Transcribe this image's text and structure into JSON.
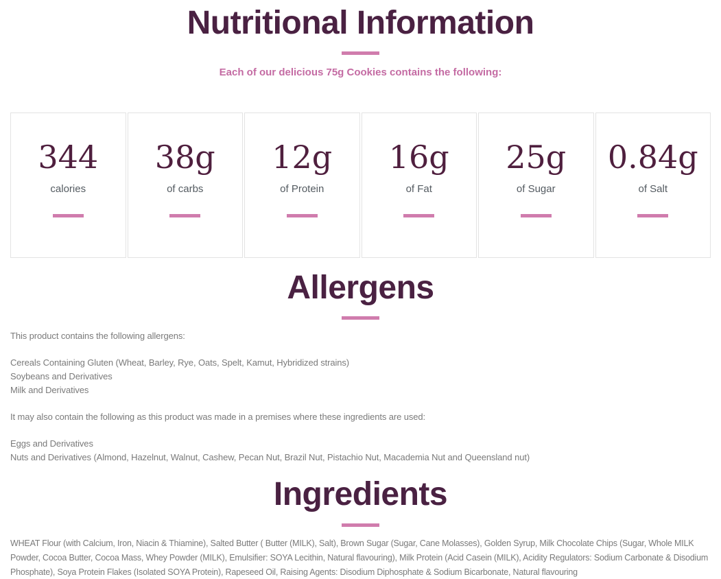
{
  "header": {
    "title": "Nutritional Information",
    "subtitle": "Each of our delicious 75g Cookies contains the following:"
  },
  "cards": [
    {
      "value": "344",
      "label": "calories"
    },
    {
      "value": "38g",
      "label": "of carbs"
    },
    {
      "value": "12g",
      "label": "of Protein"
    },
    {
      "value": "16g",
      "label": "of Fat"
    },
    {
      "value": "25g",
      "label": "of Sugar"
    },
    {
      "value": "0.84g",
      "label": "of Salt"
    }
  ],
  "allergens": {
    "heading": "Allergens",
    "intro": "This product contains the following allergens:",
    "contains": [
      "Cereals Containing Gluten (Wheat, Barley, Rye, Oats, Spelt, Kamut, Hybridized strains)",
      "Soybeans and Derivatives",
      "Milk and Derivatives"
    ],
    "may_contain_intro": "It may also contain the following as this product was made in a premises where these ingredients are used:",
    "may_contain": [
      "Eggs and Derivatives",
      "Nuts and Derivatives (Almond, Hazelnut, Walnut, Cashew, Pecan Nut, Brazil Nut, Pistachio Nut, Macademia Nut and Queensland nut)"
    ]
  },
  "ingredients": {
    "heading": "Ingredients",
    "text": "WHEAT Flour (with Calcium, Iron, Niacin & Thiamine), Salted Butter ( Butter (MILK), Salt), Brown Sugar (Sugar, Cane Molasses), Golden Syrup, Milk Chocolate Chips (Sugar, Whole MILK Powder, Cocoa Butter, Cocoa Mass, Whey Powder (MILK), Emulsifier: SOYA Lecithin, Natural flavouring), Milk Protein (Acid Casein (MILK), Acidity Regulators: Sodium Carbonate & Disodium Phosphate), Soya Protein Flakes (Isolated SOYA Protein), Rapeseed Oil, Raising Agents: Disodium Diphosphate & Sodium Bicarbonate, Natural flavouring"
  },
  "colors": {
    "heading_plum": "#4a2142",
    "accent_pink": "#d07cad",
    "subtitle_pink": "#c46ba3",
    "body_gray": "#7a7a7a",
    "label_gray": "#545b61",
    "value_plum": "#4f1f3e",
    "card_border": "#e3e3e3"
  }
}
